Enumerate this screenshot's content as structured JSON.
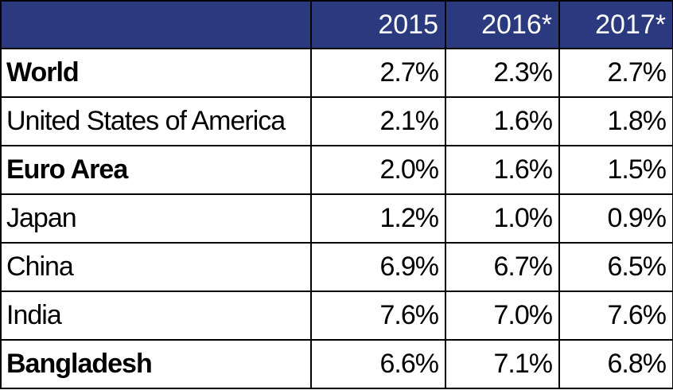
{
  "chart_data": {
    "type": "table",
    "columns": [
      "",
      "2015",
      "2016*",
      "2017*"
    ],
    "rows": [
      {
        "country": "World",
        "bold": true,
        "values": [
          "2.7%",
          "2.3%",
          "2.7%"
        ]
      },
      {
        "country": "United States of America",
        "bold": false,
        "values": [
          "2.1%",
          "1.6%",
          "1.8%"
        ]
      },
      {
        "country": "Euro Area",
        "bold": true,
        "values": [
          "2.0%",
          "1.6%",
          "1.5%"
        ]
      },
      {
        "country": "Japan",
        "bold": false,
        "values": [
          "1.2%",
          "1.0%",
          "0.9%"
        ]
      },
      {
        "country": "China",
        "bold": false,
        "values": [
          "6.9%",
          "6.7%",
          "6.5%"
        ]
      },
      {
        "country": "India",
        "bold": false,
        "values": [
          "7.6%",
          "7.0%",
          "7.6%"
        ]
      },
      {
        "country": "Bangladesh",
        "bold": true,
        "values": [
          "6.6%",
          "7.1%",
          "6.8%"
        ]
      }
    ],
    "header_color": "#2b3a7e",
    "header_text_color": "#ffffff"
  }
}
